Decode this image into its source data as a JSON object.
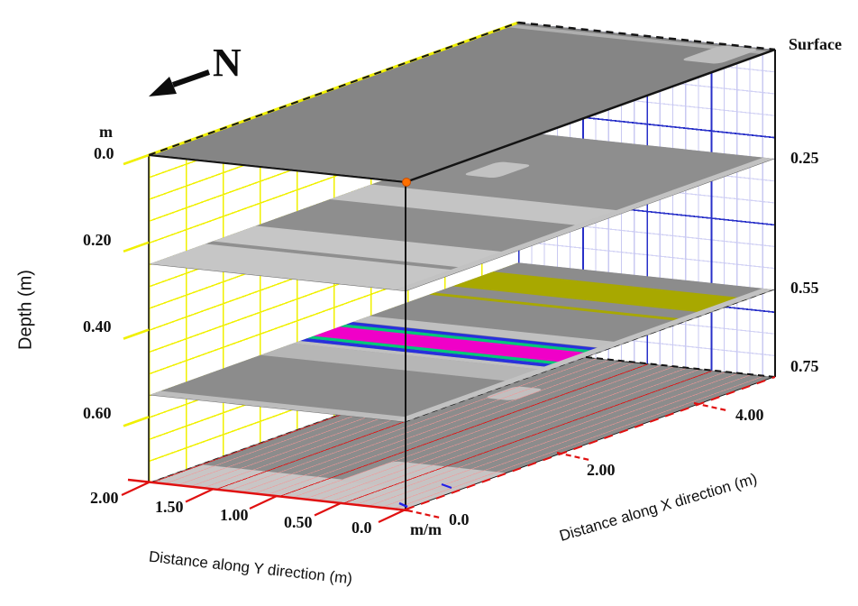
{
  "figure": {
    "north_label": "N",
    "depth_axis": {
      "title": "Depth (m)",
      "unit": "m",
      "ticks": [
        "0.0",
        "0.20",
        "0.40",
        "0.60"
      ]
    },
    "y_axis": {
      "title": "Distance along Y direction (m)",
      "ticks": [
        "2.00",
        "1.50",
        "1.00",
        "0.50",
        "0.0"
      ]
    },
    "x_axis": {
      "title": "Distance along X direction (m)",
      "unit": "m/m",
      "ticks": [
        "0.0",
        "2.00",
        "4.00"
      ]
    },
    "slice_labels": [
      "Surface",
      "0.25",
      "0.55",
      "0.75"
    ]
  },
  "chart_data": {
    "type": "heatmap",
    "subtype": "3d-depth-slices",
    "x_axis": {
      "label": "Distance along X direction (m)",
      "range_m": [
        0,
        4
      ],
      "ticks": [
        0.0,
        2.0,
        4.0
      ]
    },
    "y_axis": {
      "label": "Distance along Y direction (m)",
      "range_m": [
        0,
        2
      ],
      "ticks": [
        2.0,
        1.5,
        1.0,
        0.5,
        0.0
      ]
    },
    "depth_axis": {
      "label": "Depth (m)",
      "unit": "m",
      "range_m": [
        0,
        0.75
      ],
      "ticks": [
        0.0,
        0.2,
        0.4,
        0.6
      ]
    },
    "north_arrow_direction": "lower-left",
    "grids": {
      "back_left_wall": {
        "color": "#f0f000",
        "x_spacing_m": 0.4,
        "depth_spacing_m": 0.05
      },
      "back_right_wall": {
        "minor_color": "#c9c9f2",
        "major_color": "#2830c8",
        "y_minor_m": 0.1,
        "y_major_m": 0.5,
        "depth_minor_m": 0.05,
        "depth_major_m": 0.2
      },
      "floor": {
        "minor_color": "#f39696",
        "major_color": "#de1010",
        "y_minor_m": 0.1,
        "y_major_m": 0.5
      }
    },
    "slices": [
      {
        "label": "Surface",
        "depth_m": 0.0,
        "base_color": "#858585",
        "note": "mostly uniform dark gray; thin light lineation near x=3.9 m and light patch near far corner",
        "bands": [
          {
            "x0": 3.84,
            "x1": 3.92,
            "color": "#aeaeae"
          }
        ],
        "y_bands": [],
        "patches": [
          {
            "x0": 3.5,
            "x1": 3.95,
            "y0": 0.1,
            "y1": 0.4,
            "color": "#bdbdbd"
          }
        ]
      },
      {
        "label": "0.25",
        "depth_m": 0.25,
        "base_color": "#8e8e8e",
        "note": "broad light band x=0-1.15 m with thin dark lineation at x=0.65 m; light band x=1.95-2.4 m",
        "bands": [
          {
            "x0": 0.0,
            "x1": 1.15,
            "color": "#c6c6c6"
          },
          {
            "x0": 0.6,
            "x1": 0.68,
            "color": "#8f8f8f"
          },
          {
            "x0": 1.95,
            "x1": 2.4,
            "color": "#c4c4c4"
          }
        ],
        "y_bands": [
          {
            "y0": 0.0,
            "y1": 0.09,
            "color": "#c2c2c2"
          }
        ],
        "patches": [
          {
            "x0": 2.85,
            "x1": 3.25,
            "y0": 1.35,
            "y1": 1.62,
            "color": "#c2c2c2"
          }
        ]
      },
      {
        "label": "0.55",
        "depth_m": 0.55,
        "base_color": "#8c8c8c",
        "note": "strong linear anomaly at x=1.6-2.2 m (blue/green/magenta stripes) and olive band at x=3.3-3.7 m",
        "bands": [
          {
            "x0": 0.0,
            "x1": 0.12,
            "color": "#bdbdbd"
          },
          {
            "x0": 1.2,
            "x1": 1.55,
            "color": "#b6b6b6"
          },
          {
            "x0": 1.55,
            "x1": 1.63,
            "color": "#c0c0c0"
          },
          {
            "x0": 1.63,
            "x1": 1.71,
            "color": "#2830dc"
          },
          {
            "x0": 1.71,
            "x1": 1.78,
            "color": "#00c878"
          },
          {
            "x0": 1.78,
            "x1": 2.06,
            "color": "#f000c8"
          },
          {
            "x0": 2.06,
            "x1": 2.13,
            "color": "#00c878"
          },
          {
            "x0": 2.13,
            "x1": 2.2,
            "color": "#2830dc"
          },
          {
            "x0": 2.2,
            "x1": 2.38,
            "color": "#c0c0c0"
          },
          {
            "x0": 3.02,
            "x1": 3.08,
            "color": "#a8a800"
          },
          {
            "x0": 3.28,
            "x1": 3.72,
            "color": "#a8a800"
          }
        ],
        "y_bands": [
          {
            "y0": 0.0,
            "y1": 0.1,
            "color": "#c2c2c2"
          }
        ],
        "patches": []
      },
      {
        "label": "0.75",
        "depth_m": 0.75,
        "base_color": "#8c8c8c",
        "note": "floor slice with red/pink survey-line grid; lighter zone toward x=0 side",
        "bands": [
          {
            "x0": 0.0,
            "x1": 0.55,
            "color": "#c9c5c5"
          }
        ],
        "y_bands": [],
        "patches": [
          {
            "x0": 0.5,
            "x1": 1.1,
            "y0": 0.0,
            "y1": 0.9,
            "color": "#c7c3c3"
          },
          {
            "x0": 2.55,
            "x1": 3.1,
            "y0": 1.55,
            "y1": 1.78,
            "color": "#c5c1c1"
          },
          {
            "x0": 2.8,
            "x1": 3.15,
            "y0": 1.2,
            "y1": 1.42,
            "color": "#c2bfbf"
          }
        ]
      }
    ]
  }
}
